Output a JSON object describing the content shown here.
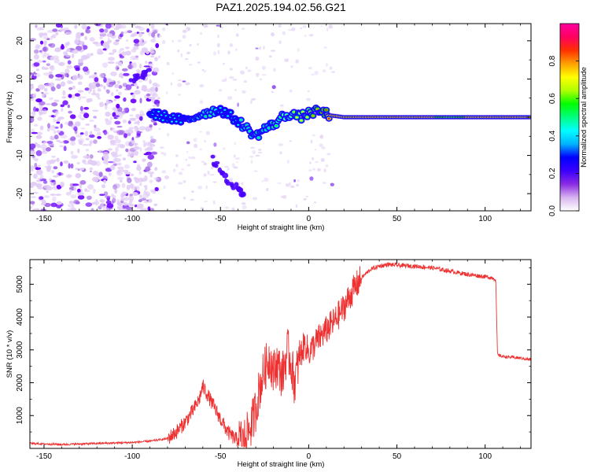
{
  "title": "PAZ1.2025.194.02.56.G21",
  "chart_data": [
    {
      "type": "heatmap",
      "xlabel": "Height of straight line (km)",
      "ylabel": "Frequency (Hz)",
      "xlim": [
        -158,
        126
      ],
      "ylim": [
        -24.5,
        24.5
      ],
      "xticks": [
        -150,
        -100,
        -50,
        0,
        50,
        100
      ],
      "yticks": [
        -20,
        -10,
        0,
        10,
        20
      ],
      "colorbar": {
        "label": "Normalized spectral amplitude",
        "range": [
          0,
          1
        ],
        "ticks": [
          "0.0",
          "0.2",
          "0.4",
          "0.6",
          "0.8"
        ],
        "colors": [
          "#ffffff",
          "#d8b4f0",
          "#8a2be2",
          "#3a00ff",
          "#0000ff",
          "#00b4ff",
          "#00ffff",
          "#00ff80",
          "#00ff00",
          "#b0ff00",
          "#ffff00",
          "#ffa000",
          "#ff3000",
          "#ff0060",
          "#ff00a0"
        ]
      },
      "ridge": {
        "x": [
          -90,
          -80,
          -70,
          -60,
          -50,
          -40,
          -35,
          -30,
          -25,
          -20,
          -15,
          -10,
          -5,
          0,
          5,
          10,
          12,
          20,
          40,
          60,
          80,
          100,
          126
        ],
        "freq": [
          1,
          0,
          -1,
          1,
          2,
          -1,
          -3,
          -5,
          -3,
          -2,
          0,
          1,
          0,
          1,
          1.5,
          1,
          0.5,
          0,
          0,
          0,
          0,
          0,
          0
        ],
        "amplitude": [
          0.4,
          0.4,
          0.45,
          0.5,
          0.45,
          0.45,
          0.5,
          0.55,
          0.5,
          0.55,
          0.6,
          0.65,
          0.7,
          0.75,
          0.8,
          0.85,
          0.95,
          0.95,
          0.95,
          0.95,
          0.8,
          0.95,
          0.9
        ]
      },
      "secondary_branch": {
        "x": [
          -100,
          -95,
          -90
        ],
        "freq": [
          10,
          11,
          12
        ],
        "amplitude": 0.3
      },
      "lower_branch": {
        "x": [
          -55,
          -50,
          -45,
          -40,
          -37
        ],
        "freq": [
          -11,
          -14,
          -17,
          -19,
          -20
        ],
        "amplitude": 0.3
      }
    },
    {
      "type": "line",
      "xlabel": "Height of straight line (km)",
      "ylabel": "SNR (10 * v/v)",
      "xlim": [
        -158,
        126
      ],
      "ylim": [
        0,
        5750
      ],
      "xticks": [
        -150,
        -100,
        -50,
        0,
        50,
        100
      ],
      "yticks": [
        1000,
        2000,
        3000,
        4000,
        5000
      ],
      "line_color": "#ee3030",
      "series": [
        {
          "x": [
            -158,
            -140,
            -120,
            -100,
            -90,
            -80,
            -75,
            -70,
            -65,
            -62,
            -60,
            -58,
            -55,
            -52,
            -50,
            -47,
            -45,
            -42,
            -40,
            -37,
            -35,
            -32,
            -30,
            -28,
            -25,
            -22,
            -20,
            -18,
            -15,
            -12,
            -10,
            -8,
            -5,
            -2,
            0,
            5,
            10,
            15,
            20,
            25,
            30,
            35,
            40,
            45,
            50,
            60,
            70,
            80,
            90,
            100,
            104,
            106,
            107,
            110,
            120,
            126
          ],
          "y": [
            150,
            120,
            150,
            180,
            220,
            300,
            500,
            800,
            1200,
            1500,
            1900,
            1700,
            1400,
            1100,
            900,
            600,
            450,
            300,
            250,
            220,
            400,
            800,
            1200,
            1800,
            2400,
            2800,
            2300,
            2600,
            2200,
            3000,
            2600,
            2000,
            2800,
            3200,
            2900,
            3300,
            3600,
            3900,
            4300,
            4800,
            5200,
            5450,
            5550,
            5600,
            5580,
            5550,
            5500,
            5400,
            5300,
            5230,
            5200,
            5150,
            2850,
            2800,
            2750,
            2700
          ]
        }
      ]
    }
  ]
}
